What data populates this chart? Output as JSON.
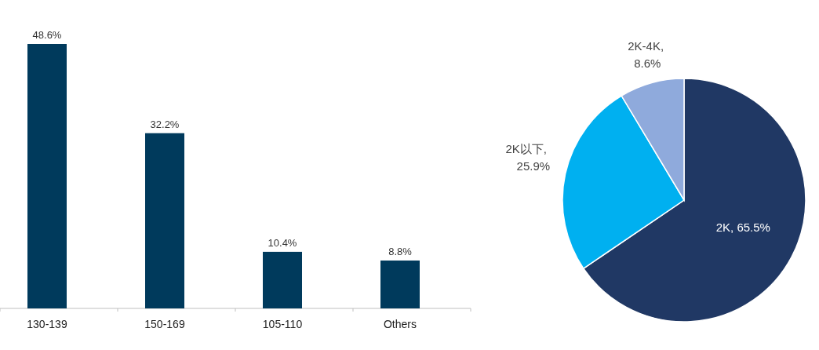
{
  "chart_data": [
    {
      "type": "bar",
      "categories": [
        "130-139",
        "150-169",
        "105-110",
        "Others"
      ],
      "values": [
        48.6,
        32.2,
        10.4,
        8.8
      ],
      "color": "#003a5c",
      "value_labels": [
        "48.6%",
        "32.2%",
        "10.4%",
        "8.8%"
      ]
    },
    {
      "type": "pie",
      "categories": [
        "2K",
        "2K以下",
        "2K-4K"
      ],
      "values": [
        65.5,
        25.9,
        8.6
      ],
      "colors": [
        "#203864",
        "#00b0f0",
        "#8faadc"
      ],
      "value_labels": [
        ", 65.5%",
        ", 25.9%",
        ", 8.6%"
      ],
      "data_labels": true
    }
  ]
}
